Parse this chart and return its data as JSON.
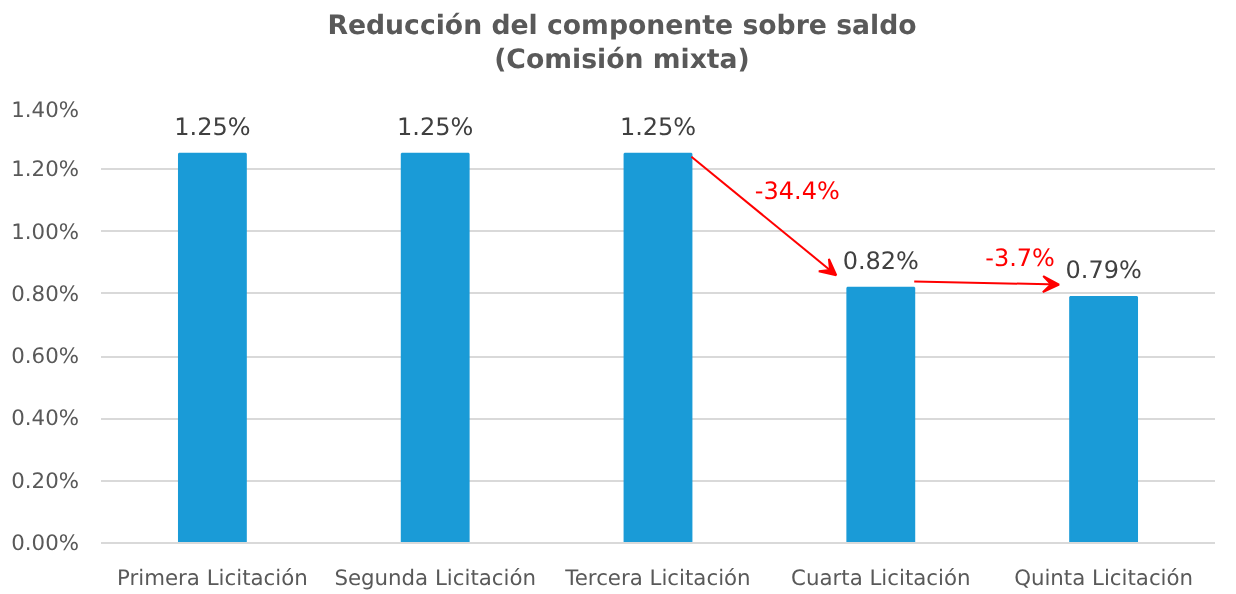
{
  "chart_data": {
    "type": "bar",
    "title": "Reducción del componente sobre saldo\n(Comisión mixta)",
    "categories": [
      "Primera Licitación",
      "Segunda Licitación",
      "Tercera Licitación",
      "Cuarta Licitación",
      "Quinta Licitación"
    ],
    "values": [
      1.25,
      1.25,
      1.25,
      0.82,
      0.79
    ],
    "value_labels": [
      "1.25%",
      "1.25%",
      "1.25%",
      "0.82%",
      "0.79%"
    ],
    "color": "#1a9bd7",
    "ylim": [
      0,
      1.4
    ],
    "yticks": [
      {
        "value": 0,
        "label": "0.00%"
      },
      {
        "value": 0.2,
        "label": "0.20%"
      },
      {
        "value": 0.4,
        "label": "0.40%"
      },
      {
        "value": 0.6,
        "label": "0.60%"
      },
      {
        "value": 0.8,
        "label": "0.80%"
      },
      {
        "value": 1.0,
        "label": "1.00%"
      },
      {
        "value": 1.2,
        "label": "1.20%"
      },
      {
        "value": 1.4,
        "label": "1.40%"
      }
    ],
    "annotations": [
      "-34.4%",
      "-3.7%"
    ],
    "grid": "y"
  }
}
